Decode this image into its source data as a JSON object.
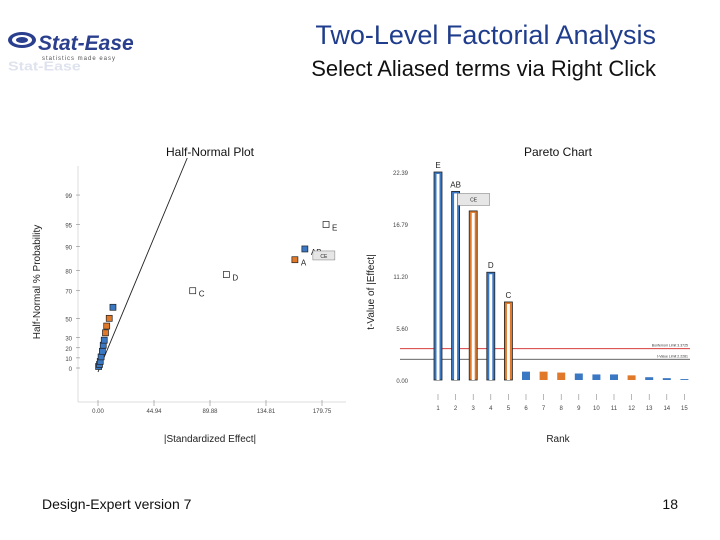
{
  "header": {
    "title": "Two-Level Factorial Analysis",
    "subtitle": "Select Aliased terms via Right Click"
  },
  "logo": {
    "brand": "Stat-Ease",
    "tagline": "statistics made easy"
  },
  "footer": {
    "software": "Design-Expert version 7",
    "page_number": "18"
  },
  "colors": {
    "blue": "#3a78c4",
    "orange": "#e07a2a",
    "limit_red": "#d02020",
    "title_blue": "#1f3d8c"
  },
  "chart_data": [
    {
      "type": "scatter",
      "title": "Half-Normal Plot",
      "xlabel": "|Standardized Effect|",
      "ylabel": "Half-Normal % Probability",
      "x_ticks": [
        "0.00",
        "44.94",
        "89.88",
        "134.81",
        "179.75"
      ],
      "xlim": [
        0,
        179.75
      ],
      "y_ticks": [
        "0",
        "10",
        "20",
        "30",
        "50",
        "70",
        "80",
        "90",
        "95",
        "99"
      ],
      "grid": false,
      "points": [
        {
          "x": 0.5,
          "y": 1.5,
          "color": "blue"
        },
        {
          "x": 1.2,
          "y": 3.5,
          "color": "blue"
        },
        {
          "x": 1.8,
          "y": 6.5,
          "color": "blue"
        },
        {
          "x": 2.5,
          "y": 11.0,
          "color": "blue"
        },
        {
          "x": 3.5,
          "y": 16.5,
          "color": "blue"
        },
        {
          "x": 4.2,
          "y": 22.5,
          "color": "blue"
        },
        {
          "x": 5.0,
          "y": 27.5,
          "color": "blue"
        },
        {
          "x": 6.0,
          "y": 35.0,
          "color": "orange"
        },
        {
          "x": 7.0,
          "y": 42.0,
          "color": "orange"
        },
        {
          "x": 9.0,
          "y": 50.0,
          "color": "orange"
        },
        {
          "x": 12.0,
          "y": 58.0,
          "color": "blue"
        },
        {
          "x": 76,
          "y": 70.0,
          "color": "white",
          "label": "C"
        },
        {
          "x": 103,
          "y": 78.0,
          "color": "white",
          "label": "D"
        },
        {
          "x": 158,
          "y": 84.5,
          "color": "orange",
          "label": "A"
        },
        {
          "x": 166,
          "y": 89.0,
          "color": "blue",
          "label": "AB"
        },
        {
          "x": 183,
          "y": 95.0,
          "color": "white",
          "label": "E"
        }
      ],
      "fit_line": {
        "x": [
          0,
          70
        ],
        "y": [
          0,
          100
        ]
      },
      "annotations": [
        "CE"
      ]
    },
    {
      "type": "bar",
      "title": "Pareto Chart",
      "xlabel": "Rank",
      "ylabel": "t-Value of |Effect|",
      "y_ticks": [
        "0.00",
        "5.60",
        "11.20",
        "16.79",
        "22.39"
      ],
      "ylim": [
        0,
        22.39
      ],
      "categories": [
        "1",
        "2",
        "3",
        "4",
        "5",
        "6",
        "7",
        "8",
        "9",
        "10",
        "11",
        "12",
        "13",
        "14",
        "15"
      ],
      "values": [
        22.39,
        20.3,
        18.2,
        11.6,
        8.4,
        0.9,
        0.9,
        0.8,
        0.7,
        0.6,
        0.6,
        0.5,
        0.3,
        0.2,
        0.1
      ],
      "bar_colors": [
        "blue",
        "blue",
        "orange",
        "blue",
        "orange",
        "blue",
        "orange",
        "orange",
        "blue",
        "blue",
        "blue",
        "orange",
        "blue",
        "blue",
        "blue"
      ],
      "bar_labels": [
        "E",
        "AB",
        "",
        "D",
        "C",
        "",
        "",
        "",
        "",
        "",
        "",
        "",
        "",
        "",
        ""
      ],
      "annotations": [
        "CE"
      ],
      "limits": [
        {
          "name": "Bonferroni Limit 3.3725",
          "value": 3.37
        },
        {
          "name": "t-Value Limit 2.2281",
          "value": 2.23
        }
      ]
    }
  ]
}
